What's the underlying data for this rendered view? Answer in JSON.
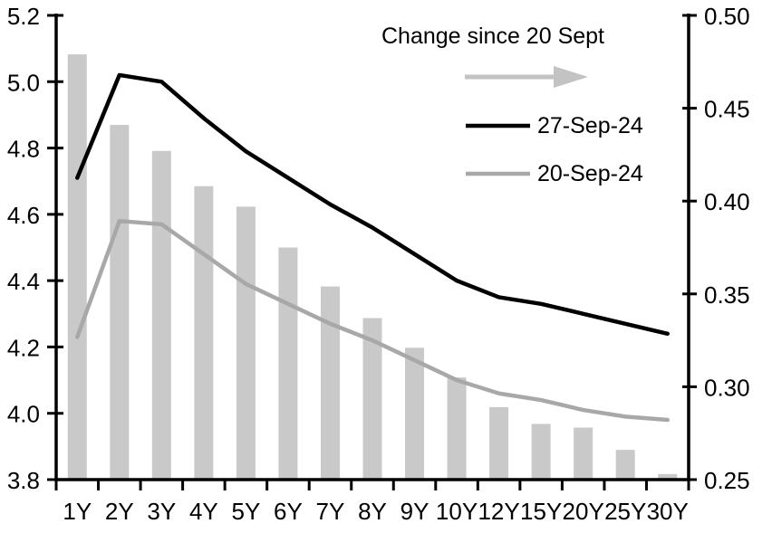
{
  "chart_data": {
    "type": "combo-bar-line",
    "title": "",
    "xlabel": "",
    "ylabel_left": "",
    "ylabel_right": "",
    "grid": false,
    "legend_position": "top-center-inside",
    "categories": [
      "1Y",
      "2Y",
      "3Y",
      "4Y",
      "5Y",
      "6Y",
      "7Y",
      "8Y",
      "9Y",
      "10Y",
      "12Y",
      "15Y",
      "20Y",
      "25Y",
      "30Y"
    ],
    "series": [
      {
        "name": "Change since 20 Sept",
        "type": "bar",
        "axis": "right",
        "color": "#c9c9c9",
        "values": [
          0.479,
          0.441,
          0.427,
          0.408,
          0.397,
          0.375,
          0.354,
          0.337,
          0.321,
          0.305,
          0.289,
          0.28,
          0.278,
          0.266,
          0.253
        ]
      },
      {
        "name": "27-Sep-24",
        "type": "line",
        "axis": "left",
        "color": "#000000",
        "values": [
          4.71,
          5.02,
          5.0,
          4.89,
          4.79,
          4.71,
          4.63,
          4.56,
          4.48,
          4.4,
          4.35,
          4.33,
          4.3,
          4.27,
          4.24
        ]
      },
      {
        "name": "20-Sep-24",
        "type": "line",
        "axis": "left",
        "color": "#a8a8a8",
        "values": [
          4.23,
          4.58,
          4.57,
          4.48,
          4.39,
          4.33,
          4.27,
          4.22,
          4.16,
          4.1,
          4.06,
          4.04,
          4.01,
          3.99,
          3.98
        ]
      }
    ],
    "left_axis": {
      "min": 3.8,
      "max": 5.2,
      "step": 0.2,
      "tick_labels": [
        "5.2",
        "5.0",
        "4.8",
        "4.6",
        "4.4",
        "4.2",
        "4.0",
        "3.8"
      ]
    },
    "right_axis": {
      "min": 0.25,
      "max": 0.5,
      "step": 0.05,
      "tick_labels": [
        "0.50",
        "0.45",
        "0.40",
        "0.35",
        "0.30",
        "0.25"
      ]
    },
    "legend": {
      "annotation": "Change since 20 Sept",
      "arrow_color": "#c3c3c3",
      "items": [
        {
          "label": "27-Sep-24",
          "color": "#000000"
        },
        {
          "label": "20-Sep-24",
          "color": "#a8a8a8"
        }
      ]
    }
  }
}
